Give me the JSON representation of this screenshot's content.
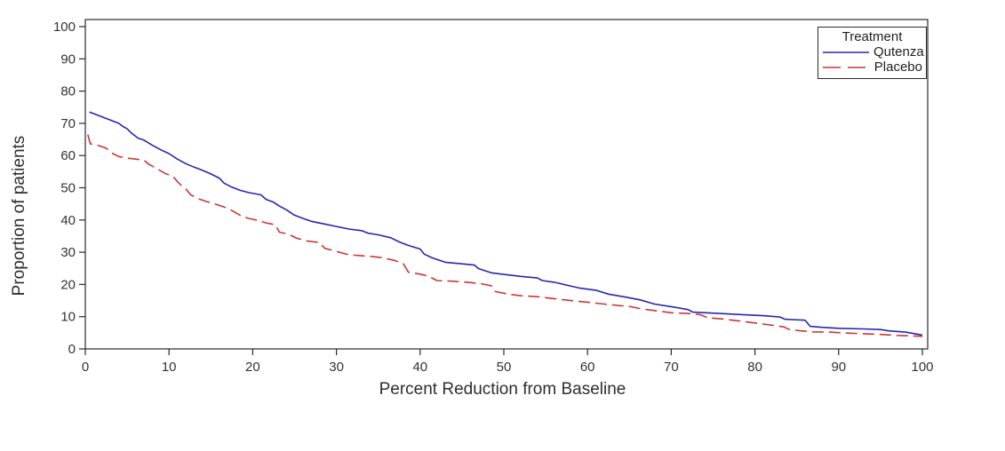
{
  "chart_data": {
    "type": "line",
    "title": "",
    "xlabel": "Percent Reduction from Baseline",
    "ylabel": "Proportion of patients",
    "xlim": [
      0,
      100
    ],
    "ylim": [
      0,
      100
    ],
    "x_ticks": [
      0,
      10,
      20,
      30,
      40,
      50,
      60,
      70,
      80,
      90,
      100
    ],
    "y_ticks": [
      0,
      10,
      20,
      30,
      40,
      50,
      60,
      70,
      80,
      90,
      100
    ],
    "grid": false,
    "frame": true,
    "axis_color": "#2a2a2a",
    "tick_label_color": "#333333",
    "legend": {
      "title": "Treatment",
      "position": "top-right"
    },
    "series": [
      {
        "name": "Qutenza",
        "color": "#2626b2",
        "style": "solid",
        "points": [
          [
            0.5,
            73.5
          ],
          [
            1,
            73
          ],
          [
            2,
            72
          ],
          [
            3,
            71
          ],
          [
            4,
            70
          ],
          [
            4.5,
            69
          ],
          [
            5,
            68.3
          ],
          [
            5.5,
            67
          ],
          [
            6.3,
            65.4
          ],
          [
            7,
            64.8
          ],
          [
            8,
            63.2
          ],
          [
            9,
            61.8
          ],
          [
            10,
            60.6
          ],
          [
            11,
            58.9
          ],
          [
            12,
            57.5
          ],
          [
            13,
            56.4
          ],
          [
            14,
            55.4
          ],
          [
            15,
            54.3
          ],
          [
            16,
            53
          ],
          [
            16.6,
            51.4
          ],
          [
            17.5,
            50.2
          ],
          [
            18.5,
            49.2
          ],
          [
            19.5,
            48.5
          ],
          [
            21,
            47.8
          ],
          [
            21.6,
            46.4
          ],
          [
            22.5,
            45.5
          ],
          [
            23.2,
            44.3
          ],
          [
            24,
            43.2
          ],
          [
            25,
            41.5
          ],
          [
            26,
            40.5
          ],
          [
            27,
            39.6
          ],
          [
            28.5,
            38.8
          ],
          [
            30,
            38
          ],
          [
            31.5,
            37.2
          ],
          [
            33,
            36.7
          ],
          [
            33.8,
            35.9
          ],
          [
            35,
            35.4
          ],
          [
            36.5,
            34.5
          ],
          [
            37.5,
            33.2
          ],
          [
            38.5,
            32.2
          ],
          [
            40,
            31
          ],
          [
            40.5,
            29.4
          ],
          [
            41.5,
            28.2
          ],
          [
            43,
            26.9
          ],
          [
            45,
            26.4
          ],
          [
            46.5,
            26
          ],
          [
            47,
            24.9
          ],
          [
            48.5,
            23.6
          ],
          [
            50,
            23.1
          ],
          [
            52,
            22.5
          ],
          [
            54,
            22
          ],
          [
            54.6,
            21.2
          ],
          [
            56,
            20.7
          ],
          [
            57.5,
            19.8
          ],
          [
            59,
            18.9
          ],
          [
            61,
            18.2
          ],
          [
            62.5,
            17
          ],
          [
            64.5,
            16.1
          ],
          [
            66.3,
            15.2
          ],
          [
            68,
            13.9
          ],
          [
            70,
            13.1
          ],
          [
            72,
            12.2
          ],
          [
            72.6,
            11.4
          ],
          [
            75,
            11.1
          ],
          [
            78,
            10.7
          ],
          [
            81,
            10.3
          ],
          [
            83,
            9.9
          ],
          [
            83.6,
            9.2
          ],
          [
            86,
            8.9
          ],
          [
            86.6,
            7
          ],
          [
            88,
            6.7
          ],
          [
            90,
            6.4
          ],
          [
            93,
            6.2
          ],
          [
            95,
            6
          ],
          [
            96,
            5.6
          ],
          [
            98,
            5.2
          ],
          [
            100,
            4.3
          ]
        ]
      },
      {
        "name": "Placebo",
        "color": "#cc3636",
        "style": "dashed",
        "points": [
          [
            0.3,
            66.5
          ],
          [
            0.6,
            63.6
          ],
          [
            1.5,
            63.2
          ],
          [
            2.5,
            62.3
          ],
          [
            3,
            61
          ],
          [
            4,
            59.7
          ],
          [
            5,
            59.2
          ],
          [
            6,
            58.9
          ],
          [
            7,
            58.6
          ],
          [
            7.5,
            57.4
          ],
          [
            8.5,
            56
          ],
          [
            9.5,
            54.5
          ],
          [
            10.5,
            53.5
          ],
          [
            11,
            51.9
          ],
          [
            11.6,
            50.4
          ],
          [
            12,
            49.7
          ],
          [
            12.6,
            47.8
          ],
          [
            13.5,
            46.6
          ],
          [
            14.5,
            45.7
          ],
          [
            15.5,
            45
          ],
          [
            16.5,
            44.1
          ],
          [
            17.2,
            43.4
          ],
          [
            18,
            42.2
          ],
          [
            18.6,
            41.3
          ],
          [
            19.5,
            40.5
          ],
          [
            20.6,
            39.9
          ],
          [
            21.6,
            39.1
          ],
          [
            22.7,
            38.5
          ],
          [
            23.2,
            36.2
          ],
          [
            24.2,
            35.7
          ],
          [
            25.2,
            34.4
          ],
          [
            26.5,
            33.5
          ],
          [
            28,
            33
          ],
          [
            28.6,
            31.2
          ],
          [
            29.5,
            30.6
          ],
          [
            30.5,
            29.9
          ],
          [
            31.5,
            29.2
          ],
          [
            33,
            28.9
          ],
          [
            34.5,
            28.6
          ],
          [
            35.5,
            28.3
          ],
          [
            37,
            27.4
          ],
          [
            38,
            26.4
          ],
          [
            38.6,
            23.8
          ],
          [
            40,
            23.2
          ],
          [
            41,
            22.6
          ],
          [
            42,
            21.2
          ],
          [
            44,
            21
          ],
          [
            46,
            20.6
          ],
          [
            47.5,
            20.1
          ],
          [
            48.5,
            19.6
          ],
          [
            49,
            17.8
          ],
          [
            50.5,
            17
          ],
          [
            52,
            16.5
          ],
          [
            54,
            16.2
          ],
          [
            56,
            15.6
          ],
          [
            58,
            15
          ],
          [
            60,
            14.5
          ],
          [
            62,
            13.9
          ],
          [
            64,
            13.4
          ],
          [
            65,
            13.2
          ],
          [
            66.5,
            12.4
          ],
          [
            68,
            11.9
          ],
          [
            70,
            11.2
          ],
          [
            72,
            11
          ],
          [
            73.5,
            10.6
          ],
          [
            74.3,
            9.7
          ],
          [
            76,
            9.3
          ],
          [
            78,
            8.7
          ],
          [
            79.5,
            8.2
          ],
          [
            81,
            7.7
          ],
          [
            82.5,
            7.2
          ],
          [
            83.5,
            6.8
          ],
          [
            84,
            6.1
          ],
          [
            85.5,
            5.6
          ],
          [
            87,
            5.3
          ],
          [
            89,
            5.2
          ],
          [
            91,
            4.9
          ],
          [
            93,
            4.7
          ],
          [
            95,
            4.5
          ],
          [
            97,
            4.2
          ],
          [
            100,
            3.9
          ]
        ]
      }
    ]
  }
}
